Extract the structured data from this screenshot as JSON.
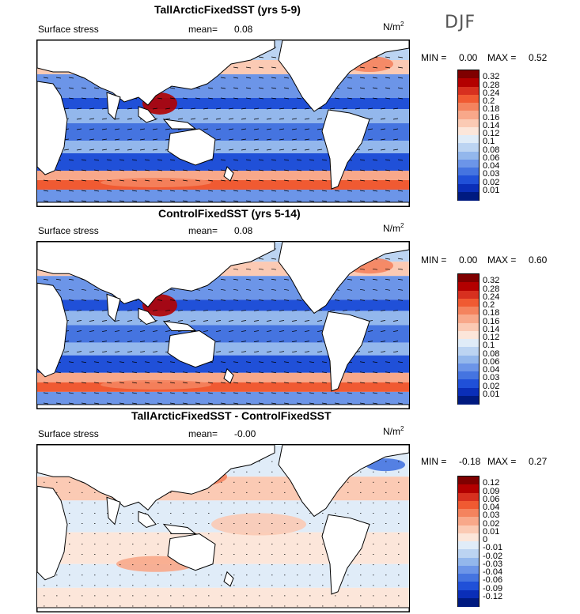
{
  "season": "DJF",
  "panels": [
    {
      "title": "TallArcticFixedSST (yrs 5-9)",
      "field": "Surface stress",
      "mean_label": "mean=",
      "mean_value": "0.08",
      "unit": "N/m",
      "unit_exp": "2",
      "min_label": "MIN =",
      "min_value": "0.00",
      "max_label": "MAX =",
      "max_value": "0.52",
      "levels": [
        "0.32",
        "0.28",
        "0.24",
        "0.2",
        "0.18",
        "0.16",
        "0.14",
        "0.12",
        "0.1",
        "0.08",
        "0.06",
        "0.04",
        "0.03",
        "0.02",
        "0.01"
      ],
      "colors": [
        "#7f0000",
        "#b30000",
        "#d7301f",
        "#f05a32",
        "#f4835e",
        "#f8a88a",
        "#fbcab4",
        "#fce6da",
        "#e0ecf8",
        "#bcd4f2",
        "#93b7ec",
        "#6c95e8",
        "#4574e0",
        "#2050d8",
        "#0a2eb8",
        "#001a80"
      ]
    },
    {
      "title": "ControlFixedSST (yrs 5-14)",
      "field": "Surface stress",
      "mean_label": "mean=",
      "mean_value": "0.08",
      "unit": "N/m",
      "unit_exp": "2",
      "min_label": "MIN =",
      "min_value": "0.00",
      "max_label": "MAX =",
      "max_value": "0.60",
      "levels": [
        "0.32",
        "0.28",
        "0.24",
        "0.2",
        "0.18",
        "0.16",
        "0.14",
        "0.12",
        "0.1",
        "0.08",
        "0.06",
        "0.04",
        "0.03",
        "0.02",
        "0.01"
      ],
      "colors": [
        "#7f0000",
        "#b30000",
        "#d7301f",
        "#f05a32",
        "#f4835e",
        "#f8a88a",
        "#fbcab4",
        "#fce6da",
        "#e0ecf8",
        "#bcd4f2",
        "#93b7ec",
        "#6c95e8",
        "#4574e0",
        "#2050d8",
        "#0a2eb8",
        "#001a80"
      ]
    },
    {
      "title": "TallArcticFixedSST - ControlFixedSST",
      "field": "Surface stress",
      "mean_label": "mean=",
      "mean_value": "-0.00",
      "unit": "N/m",
      "unit_exp": "2",
      "min_label": "MIN =",
      "min_value": "-0.18",
      "max_label": "MAX =",
      "max_value": "0.27",
      "levels": [
        "0.12",
        "0.09",
        "0.06",
        "0.04",
        "0.03",
        "0.02",
        "0.01",
        "0",
        "-0.01",
        "-0.02",
        "-0.03",
        "-0.04",
        "-0.06",
        "-0.09",
        "-0.12"
      ],
      "colors": [
        "#7f0000",
        "#b30000",
        "#d7301f",
        "#f05a32",
        "#f4835e",
        "#f8a88a",
        "#fbcab4",
        "#fce6da",
        "#e0ecf8",
        "#bcd4f2",
        "#93b7ec",
        "#6c95e8",
        "#4574e0",
        "#2050d8",
        "#0a2eb8",
        "#001a80"
      ]
    }
  ]
}
